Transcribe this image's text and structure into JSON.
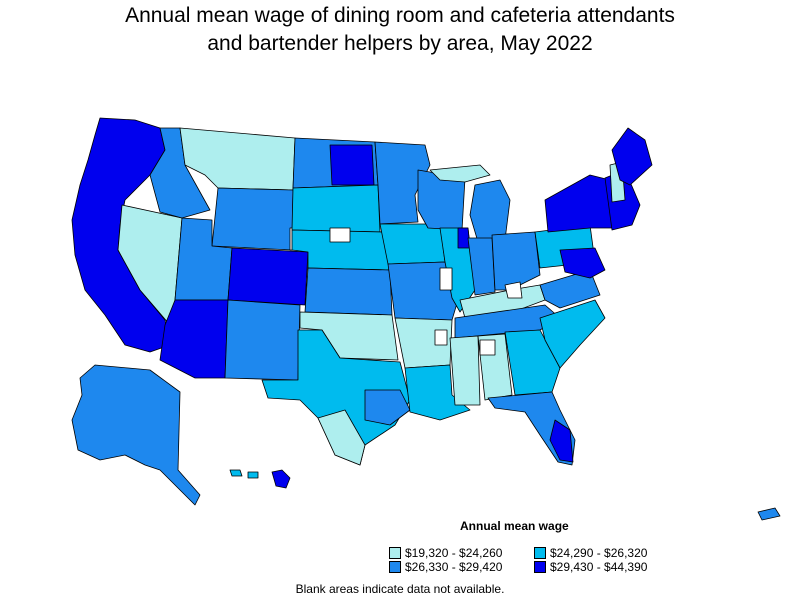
{
  "title_line1": "Annual mean wage of dining room and cafeteria attendants",
  "title_line2": "and bartender helpers by area, May 2022",
  "legend": {
    "title": "Annual mean wage",
    "items": [
      {
        "label": "$19,320 - $24,260",
        "color": "#aeeeee"
      },
      {
        "label": "$24,290 - $26,320",
        "color": "#00bbee"
      },
      {
        "label": "$26,330 - $29,420",
        "color": "#1e88ee"
      },
      {
        "label": "$29,430 - $44,390",
        "color": "#0000ee"
      }
    ]
  },
  "note": "Blank areas indicate data not available.",
  "colors": {
    "c1": "#aeeeee",
    "c2": "#00bbee",
    "c3": "#1e88ee",
    "c4": "#0000ee",
    "blank": "#ffffff",
    "border": "#000000"
  }
}
